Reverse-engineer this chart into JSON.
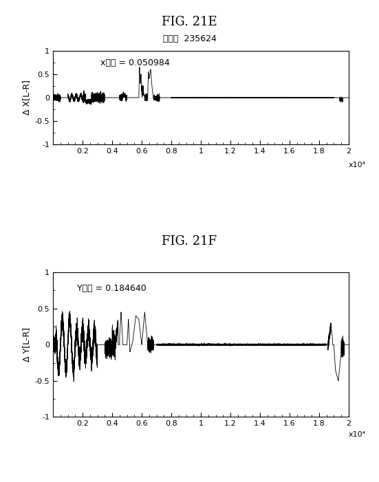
{
  "fig_title_top": "FIG. 21E",
  "subtitle_top": "全分散  235624",
  "fig_title_bottom": "FIG. 21F",
  "annotation_top": "x分散 = 0.050984",
  "annotation_bottom": "Y分散 = 0.184640",
  "ylabel_top": "Δ X[L-R]",
  "ylabel_bottom": "Δ Y[L-R]",
  "xlabel_label": "x10⁴",
  "xlim": [
    0,
    20000
  ],
  "ylim": [
    -1,
    1
  ],
  "yticks": [
    -1,
    -0.5,
    0,
    0.5,
    1
  ],
  "xticks": [
    2000,
    4000,
    6000,
    8000,
    10000,
    12000,
    14000,
    16000,
    18000,
    20000
  ],
  "xticklabels": [
    "0.2",
    "0.4",
    "0.6",
    "0.8",
    "1",
    "1.2",
    "1.4",
    "1.6",
    "1.8",
    "2"
  ],
  "bg_color": "#ffffff",
  "line_color": "#000000"
}
